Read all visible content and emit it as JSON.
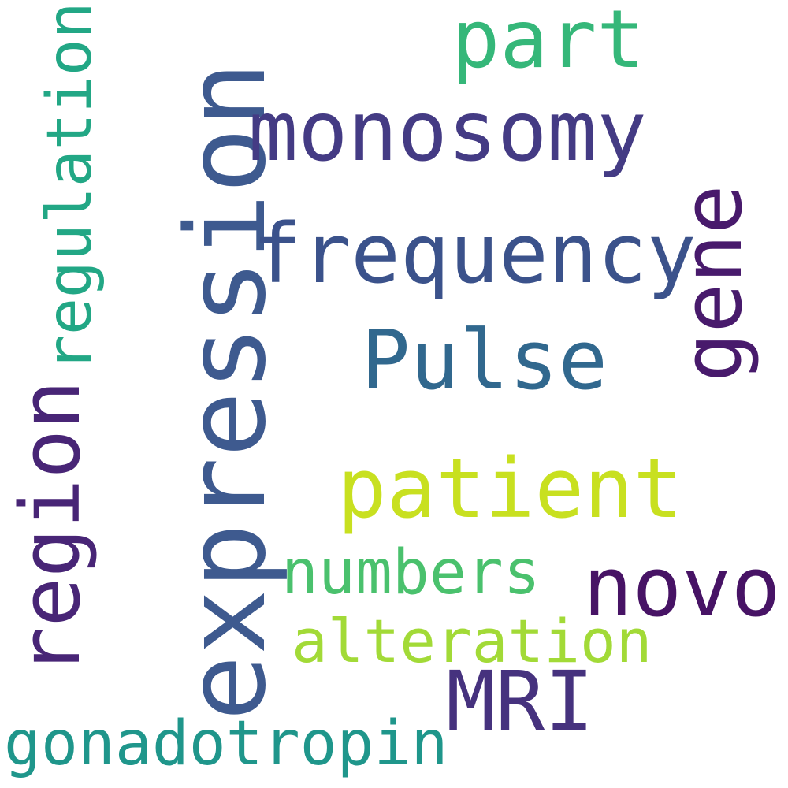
{
  "words": [
    {
      "text": "expression",
      "color": "#3e5a8f",
      "rotated": true
    },
    {
      "text": "part",
      "color": "#35b779",
      "rotated": false
    },
    {
      "text": "monosomy",
      "color": "#443b84",
      "rotated": false
    },
    {
      "text": "frequency",
      "color": "#3b528b",
      "rotated": false
    },
    {
      "text": "gene",
      "color": "#481a6c",
      "rotated": true
    },
    {
      "text": "Pulse",
      "color": "#31688e",
      "rotated": false
    },
    {
      "text": "regulation",
      "color": "#22a785",
      "rotated": true
    },
    {
      "text": "region",
      "color": "#482576",
      "rotated": true
    },
    {
      "text": "patient",
      "color": "#c8e020",
      "rotated": false
    },
    {
      "text": "novo",
      "color": "#471365",
      "rotated": false
    },
    {
      "text": "numbers",
      "color": "#4ac16d",
      "rotated": false
    },
    {
      "text": "alteration",
      "color": "#a2da37",
      "rotated": false
    },
    {
      "text": "MRI",
      "color": "#46327e",
      "rotated": false
    },
    {
      "text": "gonadotropin",
      "color": "#1f968b",
      "rotated": false
    }
  ]
}
